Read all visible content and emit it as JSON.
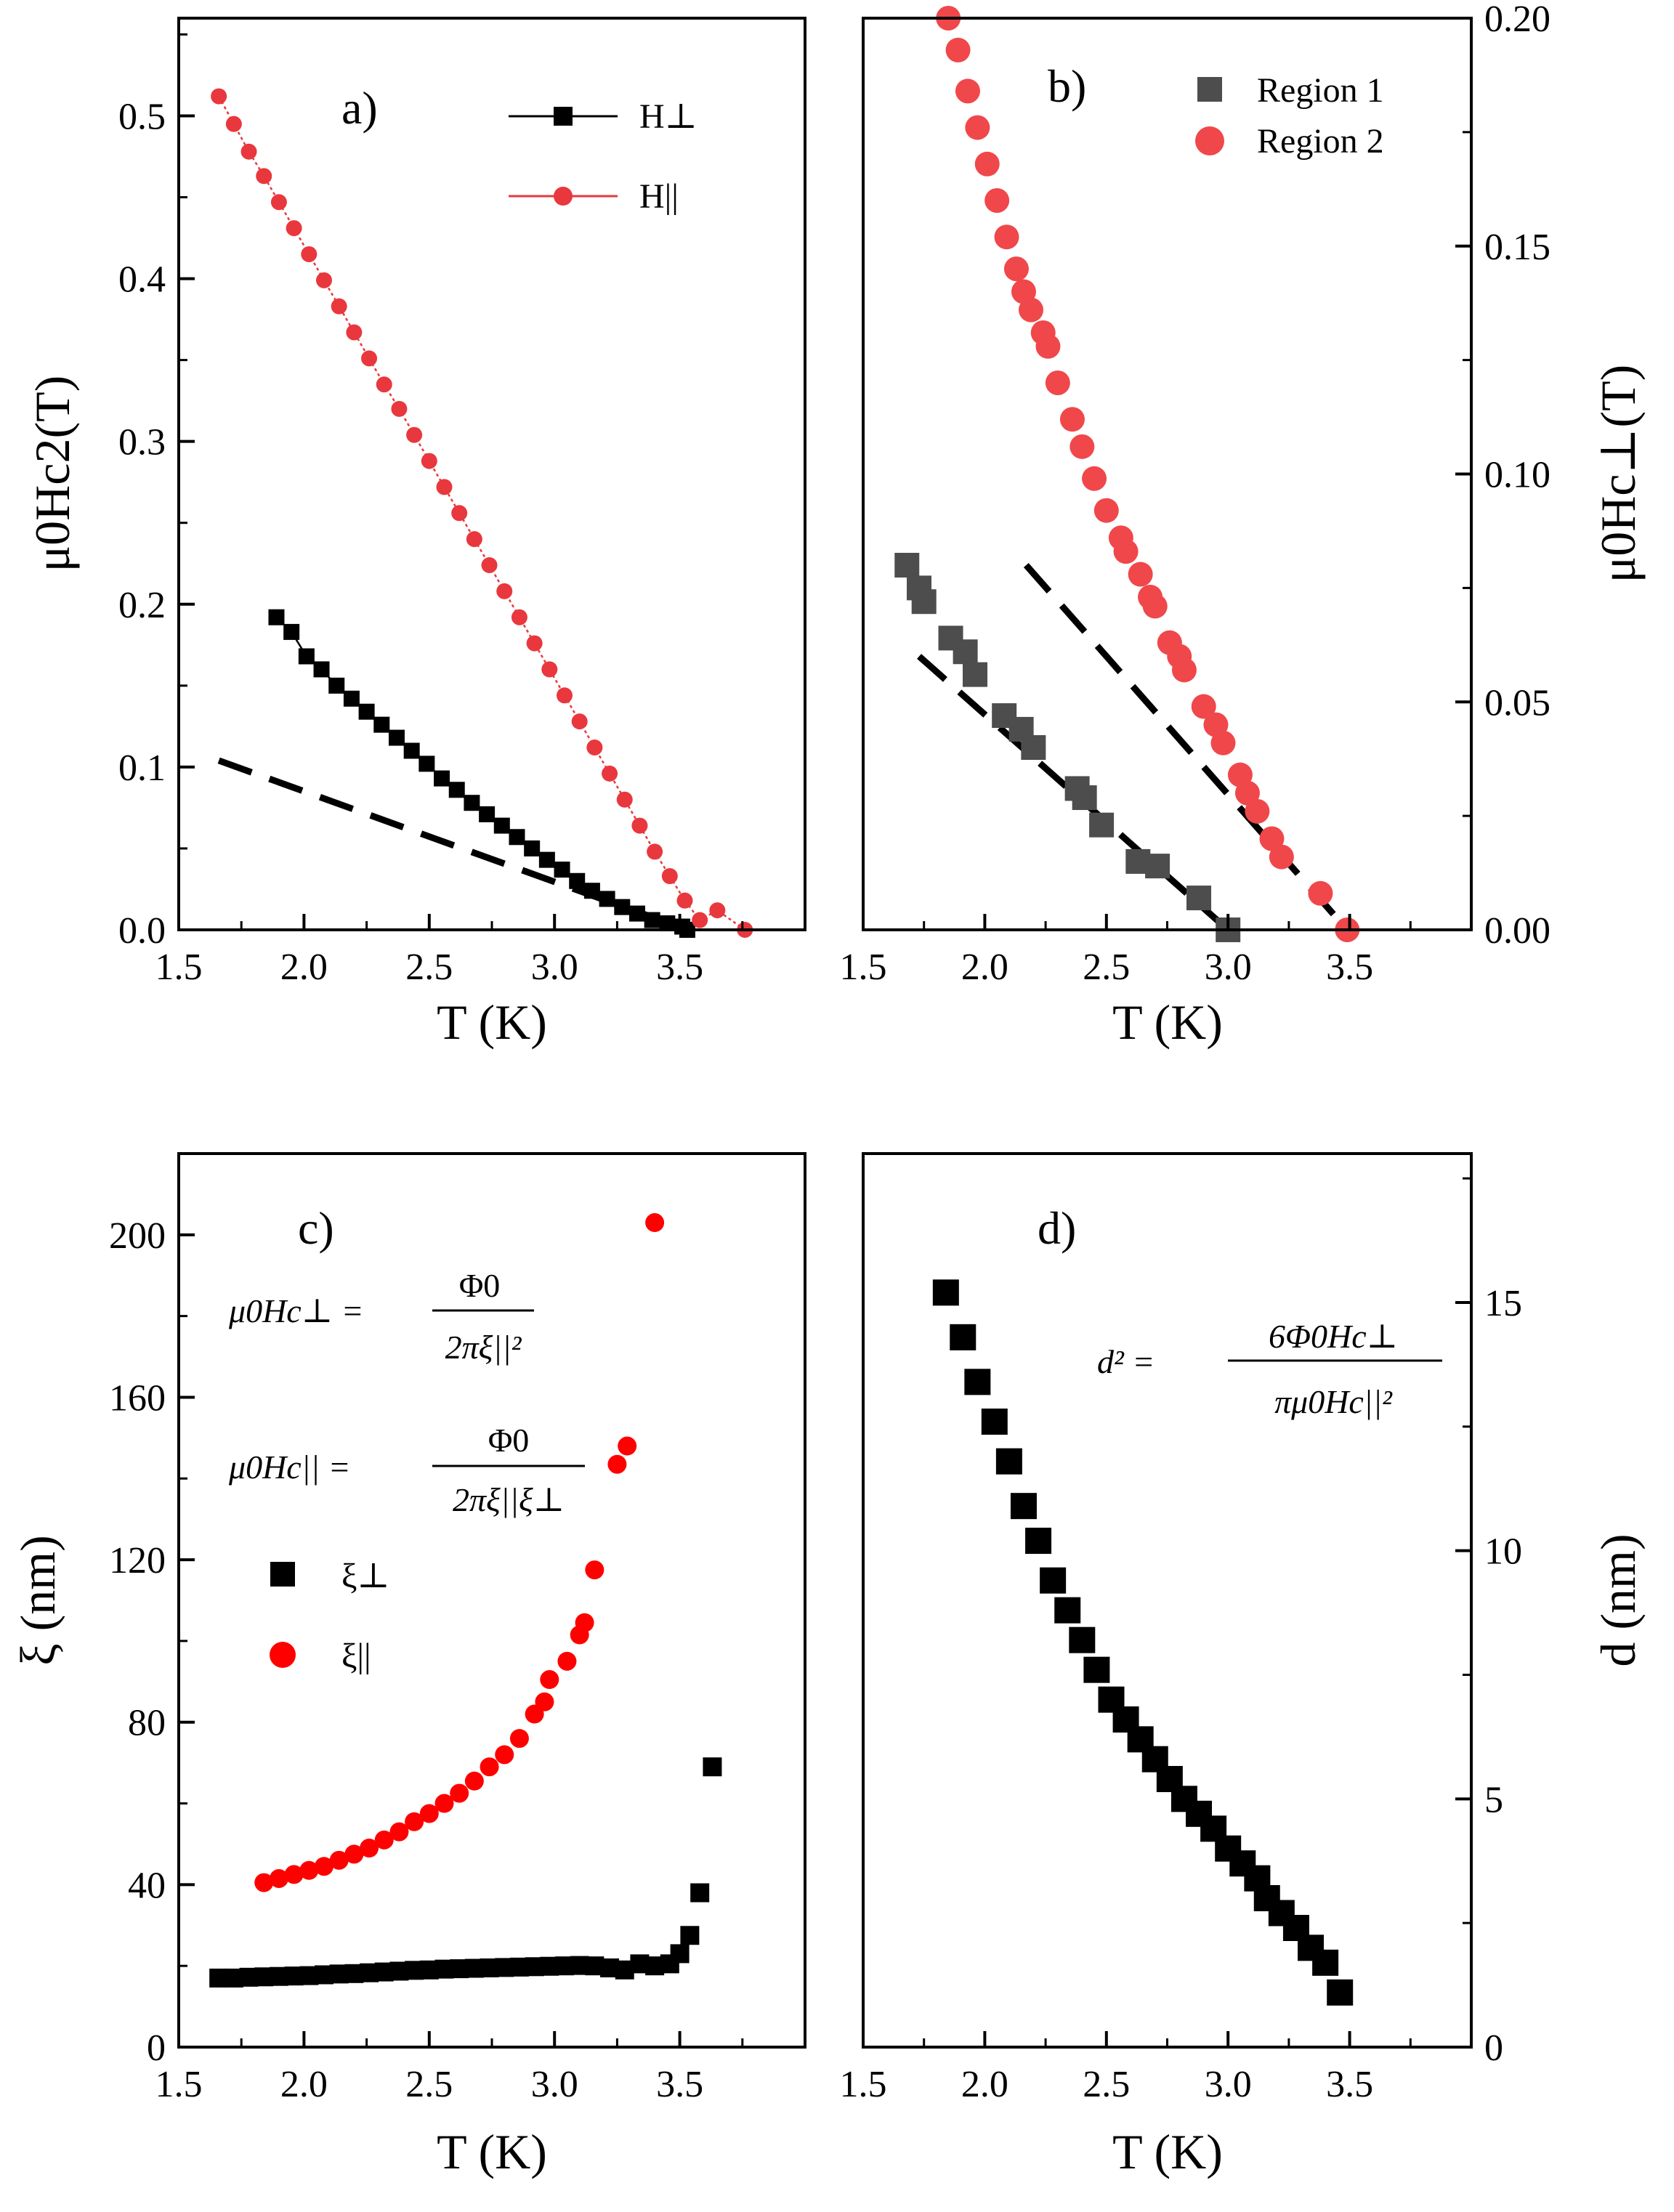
{
  "chart_data": [
    {
      "panel": "a)",
      "type": "line",
      "xlabel": "T (K)",
      "ylabel": "μ0Hc2(T)",
      "xlim": [
        1.5,
        4.0
      ],
      "ylim": [
        0,
        0.56
      ],
      "xticks": [
        "1.5",
        "2.0",
        "2.5",
        "3.0",
        "3.5"
      ],
      "yticks": [
        "0.0",
        "0.1",
        "0.2",
        "0.3",
        "0.4",
        "0.5"
      ],
      "legend": "top-right",
      "series": [
        {
          "name": "H⊥",
          "color": "#000000",
          "marker": "square",
          "x": [
            1.89,
            1.95,
            2.01,
            2.07,
            2.13,
            2.19,
            2.25,
            2.31,
            2.37,
            2.43,
            2.49,
            2.55,
            2.61,
            2.67,
            2.73,
            2.79,
            2.85,
            2.91,
            2.97,
            3.03,
            3.09,
            3.15,
            3.21,
            3.27,
            3.33,
            3.39,
            3.45,
            3.51,
            3.53
          ],
          "y": [
            0.192,
            0.183,
            0.168,
            0.16,
            0.15,
            0.142,
            0.134,
            0.126,
            0.118,
            0.11,
            0.102,
            0.093,
            0.086,
            0.078,
            0.071,
            0.064,
            0.057,
            0.05,
            0.043,
            0.037,
            0.03,
            0.024,
            0.019,
            0.014,
            0.01,
            0.006,
            0.004,
            0.002,
            0.0
          ]
        },
        {
          "name": "H||",
          "color": "#e8383d",
          "marker": "circle",
          "x": [
            1.66,
            1.72,
            1.78,
            1.84,
            1.9,
            1.96,
            2.02,
            2.08,
            2.14,
            2.2,
            2.26,
            2.32,
            2.38,
            2.44,
            2.5,
            2.56,
            2.62,
            2.68,
            2.74,
            2.8,
            2.86,
            2.92,
            2.98,
            3.04,
            3.1,
            3.16,
            3.22,
            3.28,
            3.34,
            3.4,
            3.46,
            3.52,
            3.58,
            3.65,
            3.76
          ],
          "y": [
            0.512,
            0.495,
            0.478,
            0.463,
            0.447,
            0.431,
            0.415,
            0.399,
            0.383,
            0.367,
            0.351,
            0.335,
            0.32,
            0.304,
            0.288,
            0.272,
            0.256,
            0.24,
            0.224,
            0.208,
            0.192,
            0.176,
            0.16,
            0.144,
            0.128,
            0.112,
            0.096,
            0.08,
            0.064,
            0.048,
            0.033,
            0.018,
            0.006,
            0.012,
            0.0
          ]
        }
      ],
      "dashed_lines": [
        {
          "x": [
            1.66,
            3.53
          ],
          "y": [
            0.104,
            0.0
          ]
        }
      ]
    },
    {
      "panel": "b)",
      "type": "scatter",
      "xlabel": "T (K)",
      "ylabel": "μ0Hc⊥(T)",
      "xlim": [
        1.5,
        4.0
      ],
      "ylim": [
        0,
        0.2
      ],
      "xticks": [
        "1.5",
        "2.0",
        "2.5",
        "3.0",
        "3.5"
      ],
      "yticks": [
        "0.00",
        "0.05",
        "0.10",
        "0.15",
        "0.20"
      ],
      "legend": "top-right",
      "series": [
        {
          "name": "Region 1",
          "color": "#4d4d4d",
          "marker": "square",
          "x": [
            1.68,
            1.73,
            1.75,
            1.86,
            1.92,
            1.96,
            2.08,
            2.15,
            2.2,
            2.38,
            2.41,
            2.48,
            2.63,
            2.71,
            2.88,
            3.0
          ],
          "y": [
            0.08,
            0.075,
            0.072,
            0.064,
            0.061,
            0.056,
            0.047,
            0.044,
            0.04,
            0.031,
            0.029,
            0.023,
            0.015,
            0.014,
            0.007,
            0.0
          ]
        },
        {
          "name": "Region 2",
          "color": "#f0474b",
          "marker": "circle",
          "x": [
            1.85,
            1.89,
            1.93,
            1.97,
            2.01,
            2.05,
            2.09,
            2.13,
            2.16,
            2.19,
            2.24,
            2.26,
            2.3,
            2.36,
            2.4,
            2.45,
            2.5,
            2.56,
            2.58,
            2.64,
            2.68,
            2.7,
            2.76,
            2.8,
            2.82,
            2.9,
            2.95,
            2.98,
            3.05,
            3.08,
            3.12,
            3.18,
            3.22,
            3.38,
            3.49
          ],
          "y": [
            0.2,
            0.193,
            0.184,
            0.176,
            0.168,
            0.16,
            0.152,
            0.145,
            0.14,
            0.136,
            0.131,
            0.128,
            0.12,
            0.112,
            0.106,
            0.099,
            0.092,
            0.086,
            0.083,
            0.078,
            0.073,
            0.071,
            0.063,
            0.06,
            0.057,
            0.049,
            0.045,
            0.041,
            0.034,
            0.03,
            0.026,
            0.02,
            0.016,
            0.008,
            0.0
          ]
        }
      ],
      "dashed_lines": [
        {
          "x": [
            1.73,
            3.0
          ],
          "y": [
            0.06,
            0.0
          ]
        },
        {
          "x": [
            2.17,
            3.49
          ],
          "y": [
            0.08,
            0.0
          ]
        }
      ]
    },
    {
      "panel": "c)",
      "type": "scatter",
      "xlabel": "T (K)",
      "ylabel": "ξ (nm)",
      "xlim": [
        1.5,
        4.0
      ],
      "ylim": [
        0,
        220
      ],
      "xticks": [
        "1.5",
        "2.0",
        "2.5",
        "3.0",
        "3.5"
      ],
      "yticks": [
        "0",
        "40",
        "80",
        "120",
        "160",
        "200"
      ],
      "legend": "left",
      "series": [
        {
          "name": "ξ⊥",
          "color": "#000000",
          "marker": "square",
          "x": [
            1.66,
            1.72,
            1.78,
            1.84,
            1.9,
            1.96,
            2.02,
            2.08,
            2.14,
            2.2,
            2.26,
            2.32,
            2.38,
            2.44,
            2.5,
            2.56,
            2.62,
            2.68,
            2.74,
            2.8,
            2.86,
            2.92,
            2.98,
            3.04,
            3.1,
            3.16,
            3.22,
            3.28,
            3.34,
            3.4,
            3.46,
            3.5,
            3.54,
            3.58,
            3.63
          ],
          "y": [
            17.0,
            17.0,
            17.2,
            17.3,
            17.4,
            17.5,
            17.6,
            17.8,
            18.0,
            18.1,
            18.3,
            18.5,
            18.7,
            18.9,
            19.0,
            19.2,
            19.3,
            19.4,
            19.5,
            19.6,
            19.7,
            19.8,
            19.9,
            20.0,
            20.1,
            20.0,
            19.5,
            19.0,
            20.5,
            20.0,
            20.5,
            23.0,
            27.5,
            38.0,
            69.0
          ]
        },
        {
          "name": "ξ||",
          "color": "#ff0000",
          "marker": "circle",
          "x": [
            1.84,
            1.9,
            1.96,
            2.02,
            2.08,
            2.14,
            2.2,
            2.26,
            2.32,
            2.38,
            2.44,
            2.5,
            2.56,
            2.62,
            2.68,
            2.74,
            2.8,
            2.86,
            2.92,
            2.96,
            2.98,
            3.05,
            3.1,
            3.12,
            3.16,
            3.25,
            3.29,
            3.4
          ],
          "y": [
            40.5,
            41.5,
            42.5,
            43.5,
            44.5,
            46.0,
            47.5,
            49.0,
            51.0,
            53.0,
            55.5,
            57.5,
            60.0,
            62.5,
            65.5,
            69.0,
            72.0,
            76.0,
            82.0,
            85.0,
            90.5,
            95.0,
            101.5,
            104.5,
            117.5,
            143.5,
            148.0,
            203.0
          ]
        }
      ],
      "annotations": [
        {
          "lhs": "μ0Hc⊥ =",
          "num": "Φ0",
          "den": "2πξ||²"
        },
        {
          "lhs": "μ0Hc|| =",
          "num": "Φ0",
          "den": "2πξ||ξ⊥"
        }
      ]
    },
    {
      "panel": "d)",
      "type": "scatter",
      "xlabel": "T (K)",
      "ylabel": "d (nm)",
      "xlim": [
        1.5,
        4.0
      ],
      "ylim": [
        0,
        18
      ],
      "xticks": [
        "1.5",
        "2.0",
        "2.5",
        "3.0",
        "3.5"
      ],
      "yticks": [
        "0",
        "5",
        "10",
        "15"
      ],
      "series": [
        {
          "color": "#000000",
          "marker": "square",
          "x": [
            1.84,
            1.91,
            1.97,
            2.04,
            2.1,
            2.16,
            2.22,
            2.28,
            2.34,
            2.4,
            2.46,
            2.52,
            2.58,
            2.64,
            2.7,
            2.76,
            2.82,
            2.88,
            2.94,
            3.0,
            3.06,
            3.12,
            3.16,
            3.22,
            3.28,
            3.34,
            3.4,
            3.46
          ],
          "y": [
            15.2,
            14.3,
            13.4,
            12.6,
            11.8,
            10.9,
            10.2,
            9.4,
            8.8,
            8.2,
            7.6,
            7.0,
            6.6,
            6.2,
            5.8,
            5.4,
            5.0,
            4.7,
            4.4,
            4.0,
            3.7,
            3.4,
            3.0,
            2.7,
            2.4,
            2.0,
            1.7,
            1.1
          ]
        }
      ],
      "annotations": [
        {
          "lhs": "d² =",
          "num": "6Φ0Hc⊥",
          "den": "πμ0Hc||²"
        }
      ]
    }
  ]
}
